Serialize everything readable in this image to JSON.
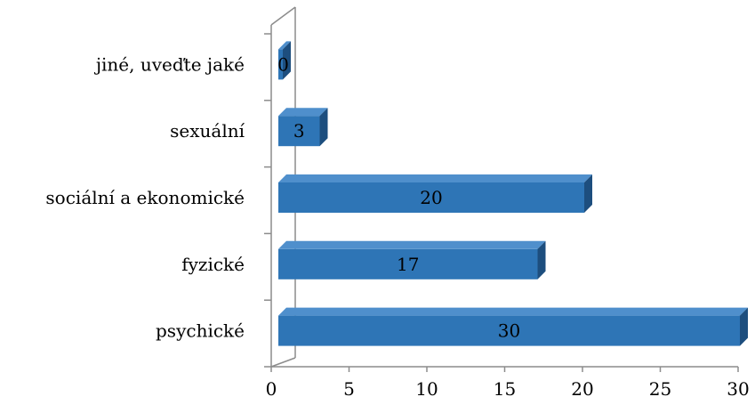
{
  "chart_data": {
    "type": "bar",
    "orientation": "horizontal",
    "three_d": true,
    "categories": [
      "psychické",
      "fyzické",
      "sociální a ekonomické",
      "sexuální",
      "jiné, uveďte jaké"
    ],
    "values": [
      30,
      17,
      20,
      3,
      0
    ],
    "data_labels": [
      "30",
      "17",
      "20",
      "3",
      "0"
    ],
    "xlim": [
      0,
      30
    ],
    "xticks": [
      0,
      5,
      10,
      15,
      20,
      25,
      30
    ],
    "xtick_labels": [
      "0",
      "5",
      "10",
      "15",
      "20",
      "25",
      "30"
    ],
    "grid": false,
    "legend": "none",
    "colors": {
      "bar_front": "#2E75B6",
      "bar_top": "#4F8FCC",
      "bar_side": "#1D4E7E",
      "axis": "#8C8C8C"
    }
  }
}
